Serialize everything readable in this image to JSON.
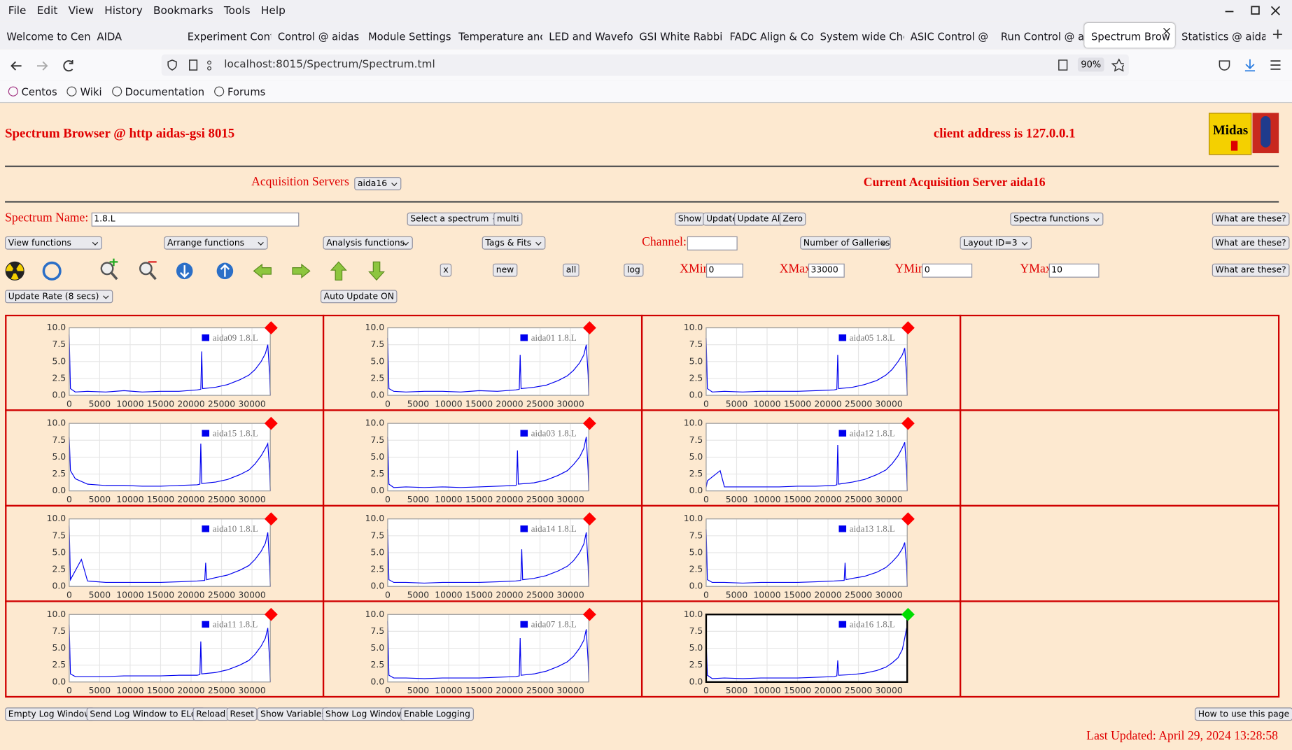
{
  "menu": [
    "File",
    "Edit",
    "View",
    "History",
    "Bookmarks",
    "Tools",
    "Help"
  ],
  "tabs": [
    "Welcome to Cen",
    "AIDA",
    "Experiment Cont",
    "Control @ aidas",
    "Module Settings",
    "Temperature anc",
    "LED and Wavefo",
    "GSI White Rabbi",
    "FADC Align & Co",
    "System wide Che",
    "ASIC Control @",
    "Run Control @ a",
    "Spectrum Brow",
    "Statistics @ aida"
  ],
  "url": "localhost:8015/Spectrum/Spectrum.tml",
  "zoom": "90%",
  "bookmarks": [
    "Centos",
    "Wiki",
    "Documentation",
    "Forums"
  ],
  "page": {
    "title": "Spectrum Browser @ http aidas-gsi 8015",
    "client": "client address is 127.0.0.1",
    "logo": "Midas",
    "servers_label": "Acquisition Servers",
    "server_select": "aida16",
    "current_server": "Current Acquisition Server aida16",
    "spectrum_label": "Spectrum Name:",
    "spectrum_name": "1.8.L",
    "select_spectrum": "Select a spectrum",
    "multi": "multi",
    "show": "Show",
    "update": "Update",
    "update_all": "Update All",
    "zero": "Zero",
    "spectra_functions": "Spectra functions",
    "help": [
      "What are these?",
      "What are these?",
      "What are these?"
    ],
    "view_functions": "View functions",
    "arrange_functions": "Arrange functions",
    "analysis_functions": "Analysis functions",
    "tags_fits": "Tags & Fits",
    "channel_label": "Channel:",
    "galleries": "Number of Galleries",
    "layout": "Layout ID=3",
    "btn_x": "x",
    "btn_new": "new",
    "btn_all": "all",
    "btn_log": "log",
    "xmin_label": "XMin",
    "xmin": "0",
    "xmax_label": "XMax",
    "xmax": "33000",
    "ymin_label": "YMin",
    "ymin": "0",
    "ymax_label": "YMax",
    "ymax": "10",
    "update_rate": "Update Rate (8 secs)",
    "auto_update": "Auto Update ON",
    "footer_buttons": [
      "Empty Log Window",
      "Send Log Window to ELog",
      "Reload",
      "Reset",
      "Show Variables",
      "Show Log Window",
      "Enable Logging"
    ],
    "how_to": "How to use this page",
    "last_updated": "Last Updated: April 29, 2024 13:28:58"
  },
  "axes": {
    "xlim": [
      0,
      33000
    ],
    "ylim": [
      0,
      10
    ],
    "xticks": [
      0,
      5000,
      10000,
      15000,
      20000,
      25000,
      30000
    ],
    "yticks": [
      {
        "value": 0,
        "label": "0.0"
      },
      {
        "value": 2.5,
        "label": "2.5"
      },
      {
        "value": 5,
        "label": "5.0"
      },
      {
        "value": 7.5,
        "label": "7.5"
      },
      {
        "value": 10,
        "label": "10.0"
      }
    ]
  },
  "panels": [
    {
      "legend": "aida09 1.8.L",
      "color": "#0000ee",
      "marker": "#ff0000",
      "x": [
        0,
        200,
        1000,
        3000,
        6000,
        9000,
        12000,
        15000,
        18000,
        21000,
        21600,
        21750,
        21900,
        24000,
        26000,
        28000,
        29500,
        30500,
        31500,
        32200,
        32600,
        32900,
        33000
      ],
      "values": [
        9,
        1,
        0.5,
        0.6,
        0.5,
        0.7,
        0.5,
        0.6,
        0.6,
        0.8,
        0.9,
        6.5,
        1,
        1.2,
        1.6,
        2.3,
        3,
        3.8,
        5,
        6.2,
        7.5,
        3,
        0
      ]
    },
    {
      "legend": "aida01 1.8.L",
      "color": "#0000ee",
      "marker": "#ff0000",
      "x": [
        0,
        200,
        1000,
        3000,
        6000,
        9000,
        12000,
        15000,
        18000,
        21000,
        21600,
        21750,
        21900,
        24000,
        26000,
        28000,
        29500,
        30500,
        31500,
        32200,
        32600,
        32900,
        33000
      ],
      "values": [
        8.5,
        1,
        0.6,
        0.5,
        0.6,
        0.6,
        0.5,
        0.7,
        0.6,
        0.8,
        0.9,
        6,
        1,
        1.2,
        1.5,
        2.2,
        2.9,
        3.7,
        4.8,
        6,
        7.5,
        3,
        0
      ]
    },
    {
      "legend": "aida05 1.8.L",
      "color": "#0000ee",
      "marker": "#ff0000",
      "x": [
        0,
        200,
        1000,
        3000,
        6000,
        9000,
        12000,
        15000,
        18000,
        21000,
        21450,
        21600,
        21750,
        24000,
        26000,
        28000,
        29500,
        30500,
        31500,
        32200,
        32600,
        32900,
        33000
      ],
      "values": [
        8.5,
        1,
        0.5,
        0.6,
        0.5,
        0.6,
        0.6,
        0.6,
        0.7,
        0.8,
        0.9,
        6,
        1,
        1.2,
        1.6,
        2.2,
        3,
        3.8,
        5,
        6,
        7,
        3,
        0
      ]
    },
    {
      "legend": "aida15 1.8.L",
      "color": "#0000ee",
      "marker": "#ff0000",
      "x": [
        0,
        200,
        1000,
        3000,
        6000,
        9000,
        12000,
        15000,
        18000,
        21000,
        21450,
        21600,
        21750,
        24000,
        26000,
        28000,
        29500,
        30500,
        31500,
        32200,
        32600,
        32900,
        33000
      ],
      "values": [
        8,
        3,
        1.8,
        1,
        0.8,
        0.8,
        0.7,
        0.7,
        0.8,
        0.9,
        1,
        7,
        1.1,
        1.3,
        1.7,
        2.4,
        3.1,
        4,
        5.2,
        6.3,
        7,
        3,
        0
      ]
    },
    {
      "legend": "aida03 1.8.L",
      "color": "#0000ee",
      "marker": "#ff0000",
      "x": [
        0,
        200,
        1000,
        3000,
        6000,
        9000,
        12000,
        15000,
        18000,
        21000,
        21150,
        21300,
        21450,
        24000,
        26000,
        28000,
        29500,
        30500,
        31500,
        32200,
        32600,
        32900,
        33000
      ],
      "values": [
        8,
        1,
        0.5,
        0.6,
        0.5,
        0.6,
        0.5,
        0.6,
        0.7,
        0.8,
        0.9,
        6,
        1,
        1.2,
        1.6,
        2.3,
        3,
        3.9,
        5,
        6.3,
        8,
        3,
        0
      ]
    },
    {
      "legend": "aida12 1.8.L",
      "color": "#0000ee",
      "marker": "#ff0000",
      "x": [
        0,
        200,
        2300,
        3000,
        6000,
        9000,
        12000,
        15000,
        18000,
        21000,
        21450,
        21600,
        21750,
        24000,
        26000,
        28000,
        29500,
        30500,
        31500,
        32200,
        32600,
        32900,
        33000
      ],
      "values": [
        0.5,
        1.5,
        3,
        0.6,
        0.6,
        0.6,
        0.6,
        0.7,
        0.7,
        0.8,
        0.9,
        6.8,
        1,
        1.3,
        1.7,
        2.4,
        3.1,
        4,
        5.2,
        6.4,
        7.2,
        3,
        0
      ]
    },
    {
      "legend": "aida10 1.8.L",
      "color": "#0000ee",
      "marker": "#ff0000",
      "x": [
        0,
        200,
        2000,
        3000,
        6000,
        9000,
        12000,
        15000,
        18000,
        21000,
        22250,
        22400,
        22550,
        24000,
        26000,
        28000,
        29500,
        30500,
        31500,
        32200,
        32600,
        32900,
        33000
      ],
      "values": [
        9,
        1,
        4,
        0.8,
        0.6,
        0.6,
        0.6,
        0.6,
        0.7,
        0.8,
        0.9,
        3.5,
        1,
        1.3,
        1.7,
        2.4,
        3.1,
        4,
        5.2,
        6.4,
        8,
        3,
        0
      ]
    },
    {
      "legend": "aida14 1.8.L",
      "color": "#0000ee",
      "marker": "#ff0000",
      "x": [
        0,
        200,
        1000,
        3000,
        6000,
        9000,
        12000,
        15000,
        18000,
        21000,
        21850,
        22000,
        22150,
        24000,
        26000,
        28000,
        29500,
        30500,
        31500,
        32200,
        32600,
        32900,
        33000
      ],
      "values": [
        8.5,
        1,
        0.6,
        0.6,
        0.5,
        0.6,
        0.6,
        0.6,
        0.7,
        0.8,
        0.9,
        5.5,
        1,
        1.2,
        1.6,
        2.3,
        3,
        3.8,
        5,
        6.3,
        8,
        3,
        0
      ]
    },
    {
      "legend": "aida13 1.8.L",
      "color": "#0000ee",
      "marker": "#ff0000",
      "x": [
        0,
        200,
        1000,
        3000,
        6000,
        9000,
        12000,
        15000,
        18000,
        21000,
        22650,
        22800,
        22950,
        24000,
        26000,
        28000,
        29500,
        30500,
        31500,
        32200,
        32600,
        32900,
        33000
      ],
      "values": [
        8.5,
        1,
        0.6,
        0.6,
        0.5,
        0.6,
        0.6,
        0.6,
        0.7,
        0.8,
        0.9,
        3.5,
        1,
        1.2,
        1.5,
        2.1,
        2.8,
        3.6,
        4.6,
        5.6,
        6.5,
        3,
        0
      ]
    },
    {
      "legend": "aida11 1.8.L",
      "color": "#0000ee",
      "marker": "#ff0000",
      "x": [
        0,
        200,
        1000,
        3000,
        6000,
        9000,
        12000,
        15000,
        18000,
        21000,
        21450,
        21600,
        21750,
        24000,
        26000,
        28000,
        29500,
        30500,
        31500,
        32200,
        32600,
        32900,
        33000
      ],
      "values": [
        8.5,
        1.2,
        0.8,
        0.8,
        0.8,
        0.9,
        0.9,
        0.9,
        1,
        1,
        1.1,
        6,
        1.2,
        1.4,
        1.8,
        2.5,
        3.2,
        4.1,
        5.3,
        6.5,
        8,
        3,
        0
      ]
    },
    {
      "legend": "aida07 1.8.L",
      "color": "#0000ee",
      "marker": "#ff0000",
      "x": [
        0,
        200,
        1000,
        3000,
        6000,
        9000,
        12000,
        15000,
        18000,
        21000,
        21600,
        21750,
        21900,
        24000,
        26000,
        28000,
        29500,
        30500,
        31500,
        32200,
        32600,
        32900,
        33000
      ],
      "values": [
        9,
        1,
        0.6,
        0.6,
        0.5,
        0.6,
        0.6,
        0.6,
        0.7,
        0.8,
        0.9,
        6.5,
        1,
        1.2,
        1.6,
        2.3,
        3,
        3.8,
        5,
        6.2,
        7.8,
        3,
        0
      ]
    },
    {
      "legend": "aida16 1.8.L",
      "color": "#0000ee",
      "marker": "#00dd00",
      "selected": true,
      "x": [
        0,
        200,
        1000,
        3000,
        6000,
        9000,
        12000,
        15000,
        18000,
        21000,
        21450,
        21600,
        21750,
        24000,
        26000,
        28000,
        29500,
        30500,
        31500,
        32200,
        32600,
        32900,
        33000
      ],
      "values": [
        6,
        1,
        0.5,
        0.6,
        0.5,
        0.6,
        0.6,
        0.6,
        0.7,
        0.8,
        0.9,
        3.2,
        1,
        1.1,
        1.3,
        1.7,
        2.2,
        2.8,
        3.6,
        4.8,
        6.5,
        8,
        0
      ]
    }
  ]
}
